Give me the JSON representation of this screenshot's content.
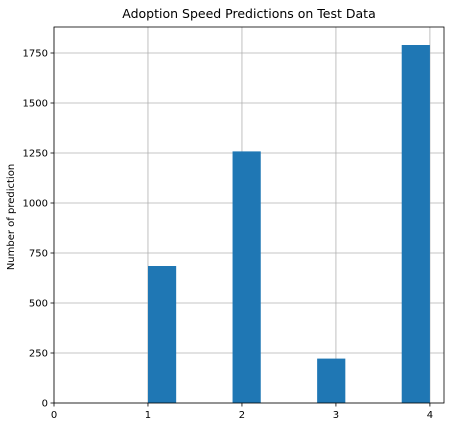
{
  "chart_data": {
    "type": "bar",
    "title": "Adoption Speed Predictions on Test Data",
    "xlabel": "",
    "ylabel": "Number of prediction",
    "x_ticks": [
      0,
      1,
      2,
      3,
      4
    ],
    "y_ticks": [
      0,
      250,
      500,
      750,
      1000,
      1250,
      1500,
      1750
    ],
    "xlim": [
      0,
      4.15
    ],
    "ylim": [
      0,
      1880
    ],
    "grid": true,
    "bar_color": "#1f77b4",
    "bins": [
      {
        "x_start": 1.0,
        "x_end": 1.3,
        "value": 685
      },
      {
        "x_start": 1.9,
        "x_end": 2.2,
        "value": 1258
      },
      {
        "x_start": 2.8,
        "x_end": 3.1,
        "value": 222
      },
      {
        "x_start": 3.7,
        "x_end": 4.0,
        "value": 1790
      }
    ]
  }
}
